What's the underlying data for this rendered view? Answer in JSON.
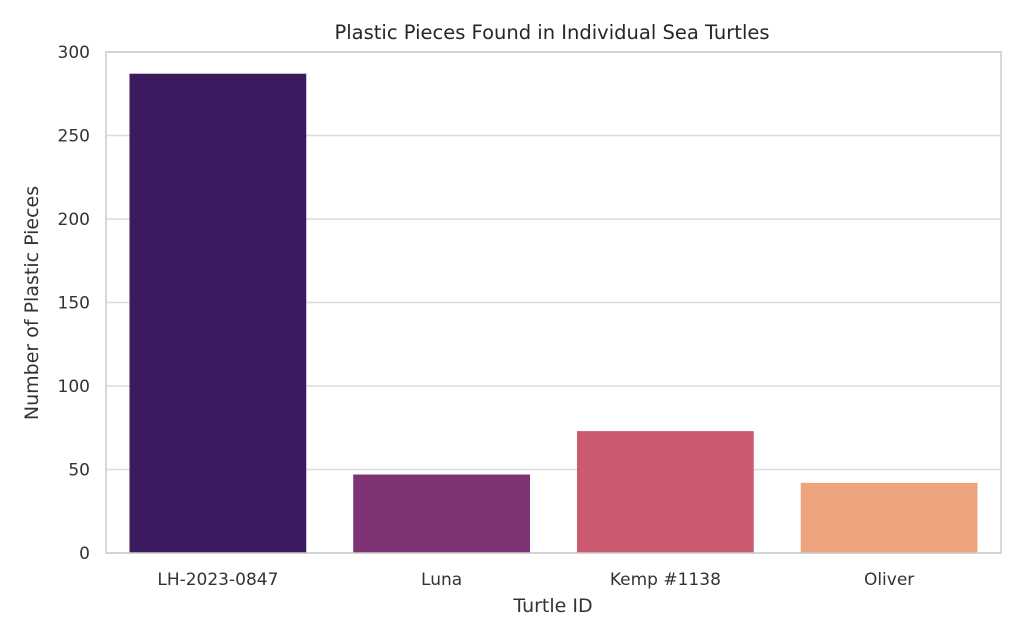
{
  "chart_data": {
    "type": "bar",
    "title": "Plastic Pieces Found in Individual Sea Turtles",
    "xlabel": "Turtle ID",
    "ylabel": "Number of Plastic Pieces",
    "categories": [
      "LH-2023-0847",
      "Luna",
      "Kemp #1138",
      "Oliver"
    ],
    "values": [
      287,
      47,
      73,
      42
    ],
    "colors": [
      "#3b1a60",
      "#7e3474",
      "#cc5b71",
      "#eda47d"
    ],
    "ylim": [
      0,
      300
    ],
    "yticks": [
      "0",
      "50",
      "100",
      "150",
      "200",
      "250",
      "300"
    ],
    "grid": "horizontal",
    "legend": "none"
  }
}
